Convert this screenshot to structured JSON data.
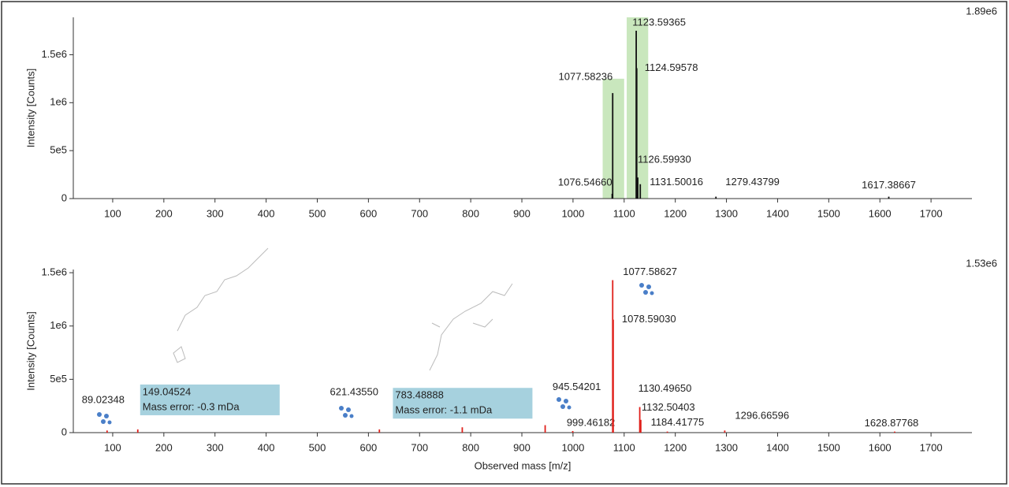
{
  "chart_data": [
    {
      "type": "spectrum",
      "ylabel": "Intensity [Counts]",
      "max_label": "1.89e6",
      "color": "#111111",
      "highlight_color": "#c9e7bd",
      "x": [
        1076.5466,
        1077.58236,
        1123.59365,
        1124.59578,
        1126.5993,
        1131.50016,
        1279.43799,
        1617.38667
      ],
      "x_labels": [
        "1076.54660",
        "1077.58236",
        "1123.59365",
        "1124.59578",
        "1126.59930",
        "1131.50016",
        "1279.43799",
        "1617.38667"
      ],
      "values": [
        50000,
        1100000,
        1750000,
        1360000,
        220000,
        150000,
        20000,
        20000
      ],
      "highlights": [
        {
          "x": [
            1058,
            1100
          ],
          "y": 1250000
        },
        {
          "x": [
            1105,
            1147
          ],
          "y": 1890000
        }
      ],
      "xlim": [
        23,
        1780
      ],
      "xticks": [
        100,
        200,
        300,
        400,
        500,
        600,
        700,
        800,
        900,
        1000,
        1100,
        1200,
        1300,
        1400,
        1500,
        1600,
        1700
      ],
      "ylim": [
        0,
        1890000
      ],
      "yticks": [
        0,
        {
          "value": 500000,
          "label": "5e5"
        },
        {
          "value": 1000000,
          "label": "1e6"
        },
        {
          "value": 1500000,
          "label": "1.5e6"
        }
      ]
    },
    {
      "type": "spectrum",
      "ylabel": "Intensity [Counts]",
      "xlabel": "Observed mass [m/z]",
      "max_label": "1.53e6",
      "color": "#e0201b",
      "box_color": "#a6d1de",
      "x": [
        89.02348,
        149.04524,
        621.4355,
        783.48888,
        945.54201,
        999.46182,
        1077.58627,
        1078.5903,
        1130.4965,
        1132.50403,
        1184.41775,
        1296.66596,
        1628.87768
      ],
      "x_labels": [
        "89.02348",
        "149.04524",
        "621.43550",
        "783.48888",
        "945.54201",
        "999.46182",
        "1077.58627",
        "1078.59030",
        "1130.49650",
        "1132.50403",
        "1184.41775",
        "1296.66596",
        "1628.87768"
      ],
      "mass_errors": [
        null,
        "Mass error: -0.3 mDa",
        null,
        "Mass error: -1.1 mDa",
        null,
        null,
        null,
        null,
        null,
        null,
        null,
        null,
        null
      ],
      "values": [
        20000,
        30000,
        30000,
        50000,
        70000,
        15000,
        1430000,
        1060000,
        240000,
        120000,
        10000,
        20000,
        10000
      ],
      "xlim": [
        23,
        1780
      ],
      "xticks": [
        100,
        200,
        300,
        400,
        500,
        600,
        700,
        800,
        900,
        1000,
        1100,
        1200,
        1300,
        1400,
        1500,
        1600,
        1700
      ],
      "ylim": [
        0,
        1530000
      ],
      "yticks": [
        0,
        {
          "value": 500000,
          "label": "5e5"
        },
        {
          "value": 1000000,
          "label": "1e6"
        },
        {
          "value": 1500000,
          "label": "1.5e6"
        }
      ]
    }
  ]
}
